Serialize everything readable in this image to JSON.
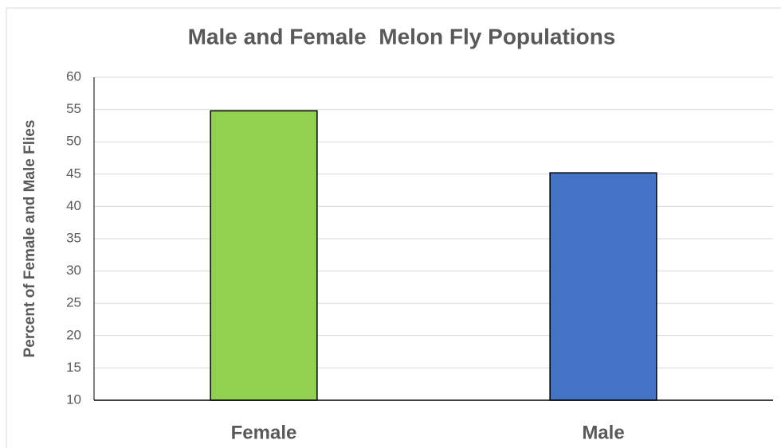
{
  "chart_data": {
    "type": "bar",
    "title": "Male and Female  Melon Fly Populations",
    "y_label": "Percent of Female and Male Flies",
    "categories": [
      "Female",
      "Male"
    ],
    "values": [
      54.8,
      45.2
    ],
    "colors": [
      "#92d050",
      "#4472c4"
    ],
    "ylim": [
      10,
      60
    ],
    "yticks": [
      10,
      15,
      20,
      25,
      30,
      35,
      40,
      45,
      50,
      55,
      60
    ],
    "grid": true
  }
}
